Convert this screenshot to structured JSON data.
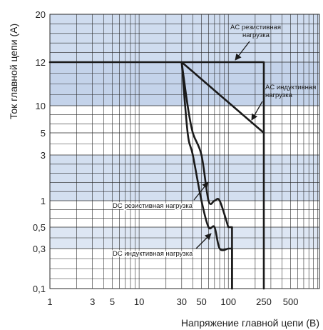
{
  "chart_data": {
    "type": "line",
    "title": "",
    "xlabel": "Напряжение главной цепи (В)",
    "ylabel": "Ток главной цепи (А)",
    "x_scale": "log",
    "grid": true,
    "x_ticks": [
      "1",
      "3",
      "5",
      "10",
      "30",
      "50",
      "100",
      "250",
      "500"
    ],
    "y_ticks": [
      "0,1",
      "0,3",
      "0,5",
      "1",
      "3",
      "5",
      "10",
      "12",
      "20"
    ],
    "bands": [
      {
        "from_tick": "12",
        "to_tick": "20",
        "color": "#cfdcef"
      },
      {
        "from_tick": "10",
        "to_tick": "12",
        "color": "#c4d3ea"
      },
      {
        "from_tick": "1",
        "to_tick": "3",
        "color": "#d3dff0"
      },
      {
        "from_tick": "0,3",
        "to_tick": "0,5",
        "color": "#dde6f3"
      }
    ],
    "series": [
      {
        "name": "AC резистивная нагрузка",
        "x": [
          1,
          30,
          250,
          250
        ],
        "y": [
          "12",
          "12",
          "12",
          "0,1"
        ]
      },
      {
        "name": "AC индуктивная нагрузка",
        "x": [
          30,
          250
        ],
        "y": [
          "12",
          "5"
        ]
      },
      {
        "name": "DC резистивная нагрузка",
        "x": [
          30,
          35,
          40,
          50,
          60,
          70,
          80,
          100,
          110,
          110
        ],
        "y": [
          "12",
          "10",
          "5",
          "3",
          "1",
          "1",
          "1",
          "0,5",
          "0,5",
          "0,1"
        ]
      },
      {
        "name": "DC индуктивная нагрузка",
        "x": [
          30,
          35,
          40,
          50,
          60,
          70,
          80,
          100,
          110,
          110
        ],
        "y": [
          "12",
          "5",
          "3",
          "1",
          "0,5",
          "0,5",
          "0,3",
          "0,3",
          "0,3",
          "0,1"
        ]
      }
    ],
    "annotations": [
      {
        "text": "AC резистивная",
        "series": 0
      },
      {
        "text": "нагрузка",
        "series": 0
      },
      {
        "text": "AC индуктивная",
        "series": 1
      },
      {
        "text": "нагрузка",
        "series": 1
      },
      {
        "text": "DC резистивная нагрузка",
        "series": 2
      },
      {
        "text": "DC индуктивная нагрузка",
        "series": 3
      }
    ],
    "colors": {
      "line": "#1a1a1a",
      "grid": "#2a2a2a",
      "arrow": "#1a1a1a"
    }
  }
}
